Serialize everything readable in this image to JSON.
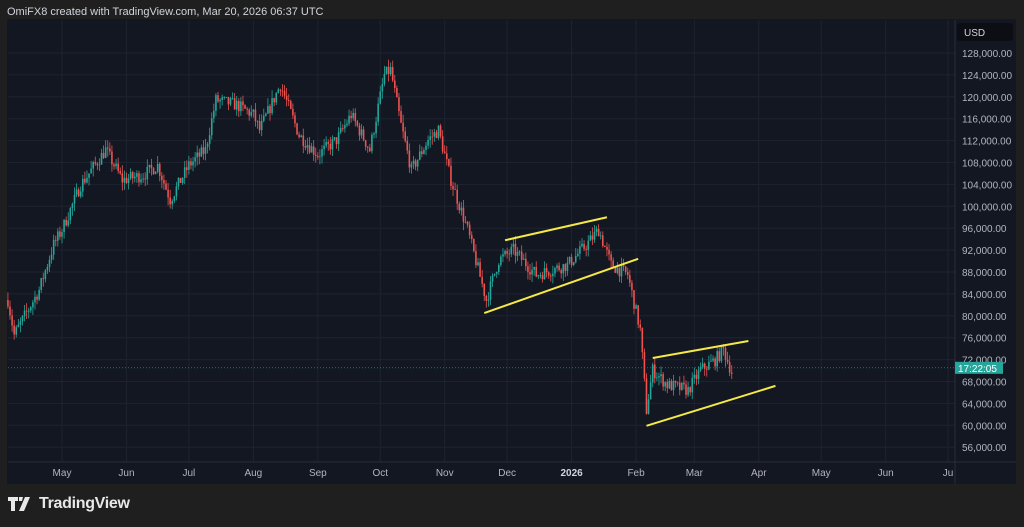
{
  "header": {
    "caption": "OmiFX8 created with TradingView.com, Mar 20, 2026 06:37 UTC"
  },
  "footer": {
    "logo_text": "TradingView",
    "logo_icon": "tradingview-logo-icon"
  },
  "chart_data": {
    "type": "candlestick",
    "currency_label": "USD",
    "countdown_label": "17:22:05",
    "colors": {
      "up": "#26a69a",
      "down": "#ef5350",
      "trendline": "#f5e948",
      "background": "#131722",
      "grid": "#1e2330",
      "countdown_bg": "#26a69a"
    },
    "grid": true,
    "y_ticks": [
      128000,
      124000,
      120000,
      116000,
      112000,
      108000,
      104000,
      100000,
      96000,
      92000,
      88000,
      84000,
      80000,
      76000,
      72000,
      68000,
      64000,
      60000,
      56000
    ],
    "y_tick_labels": [
      "128,000.00",
      "124,000.00",
      "120,000.00",
      "116,000.00",
      "112,000.00",
      "108,000.00",
      "104,000.00",
      "100,000.00",
      "96,000.00",
      "92,000.00",
      "88,000.00",
      "84,000.00",
      "80,000.00",
      "76,000.00",
      "72,000.00",
      "68,000.00",
      "64,000.00",
      "60,000.00",
      "56,000.00"
    ],
    "x_ticks": [
      {
        "date": "2025-05-01",
        "label": "May"
      },
      {
        "date": "2025-06-01",
        "label": "Jun"
      },
      {
        "date": "2025-07-01",
        "label": "Jul"
      },
      {
        "date": "2025-08-01",
        "label": "Aug"
      },
      {
        "date": "2025-09-01",
        "label": "Sep"
      },
      {
        "date": "2025-10-01",
        "label": "Oct"
      },
      {
        "date": "2025-11-01",
        "label": "Nov"
      },
      {
        "date": "2025-12-01",
        "label": "Dec"
      },
      {
        "date": "2026-01-01",
        "label": "2026",
        "bold": true
      },
      {
        "date": "2026-02-01",
        "label": "Feb"
      },
      {
        "date": "2026-03-01",
        "label": "Mar"
      },
      {
        "date": "2026-04-01",
        "label": "Apr"
      },
      {
        "date": "2026-05-01",
        "label": "May"
      },
      {
        "date": "2026-06-01",
        "label": "Jun"
      },
      {
        "date": "2026-07-01",
        "label": "Ju"
      }
    ],
    "close_waypoints": [
      [
        "2025-04-05",
        82900
      ],
      [
        "2025-04-08",
        76500
      ],
      [
        "2025-04-20",
        84700
      ],
      [
        "2025-04-27",
        93000
      ],
      [
        "2025-05-01",
        95700
      ],
      [
        "2025-05-10",
        103900
      ],
      [
        "2025-05-22",
        110300
      ],
      [
        "2025-05-30",
        104800
      ],
      [
        "2025-06-09",
        105700
      ],
      [
        "2025-06-16",
        107500
      ],
      [
        "2025-06-22",
        101200
      ],
      [
        "2025-07-01",
        107500
      ],
      [
        "2025-07-09",
        110300
      ],
      [
        "2025-07-14",
        119400
      ],
      [
        "2025-07-24",
        118500
      ],
      [
        "2025-08-01",
        116700
      ],
      [
        "2025-08-04",
        113900
      ],
      [
        "2025-08-14",
        122200
      ],
      [
        "2025-08-23",
        113000
      ],
      [
        "2025-09-01",
        109400
      ],
      [
        "2025-09-10",
        112100
      ],
      [
        "2025-09-17",
        116700
      ],
      [
        "2025-09-26",
        110300
      ],
      [
        "2025-10-03",
        124000
      ],
      [
        "2025-10-06",
        124900
      ],
      [
        "2025-10-11",
        114800
      ],
      [
        "2025-10-16",
        106600
      ],
      [
        "2025-10-24",
        112100
      ],
      [
        "2025-10-29",
        113900
      ],
      [
        "2025-11-04",
        104800
      ],
      [
        "2025-11-12",
        95700
      ],
      [
        "2025-11-21",
        82900
      ],
      [
        "2025-11-27",
        90200
      ],
      [
        "2025-12-04",
        92000
      ],
      [
        "2025-12-15",
        87500
      ],
      [
        "2025-12-30",
        89300
      ],
      [
        "2026-01-08",
        92900
      ],
      [
        "2026-01-14",
        95700
      ],
      [
        "2026-01-20",
        89300
      ],
      [
        "2026-01-28",
        87500
      ],
      [
        "2026-02-03",
        77400
      ],
      [
        "2026-02-06",
        62800
      ],
      [
        "2026-02-09",
        70100
      ],
      [
        "2026-02-16",
        67400
      ],
      [
        "2026-02-26",
        66400
      ],
      [
        "2026-03-04",
        70100
      ],
      [
        "2026-03-11",
        71900
      ],
      [
        "2026-03-15",
        73800
      ],
      [
        "2026-03-19",
        69700
      ]
    ],
    "last_price": 70500,
    "trendlines": [
      {
        "from": [
          "2025-11-30",
          93800
        ],
        "to": [
          "2026-01-18",
          98000
        ]
      },
      {
        "from": [
          "2025-11-20",
          80500
        ],
        "to": [
          "2026-02-02",
          90400
        ]
      },
      {
        "from": [
          "2026-02-09",
          72300
        ],
        "to": [
          "2026-03-27",
          75400
        ]
      },
      {
        "from": [
          "2026-02-06",
          59900
        ],
        "to": [
          "2026-04-09",
          67200
        ]
      }
    ]
  }
}
